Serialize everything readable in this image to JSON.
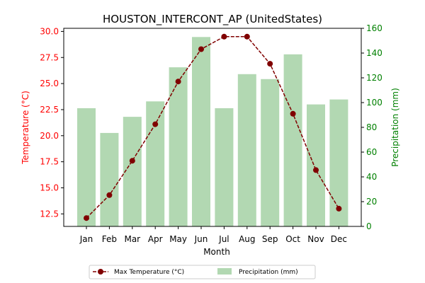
{
  "chart_data": {
    "type": "bar+line",
    "title": "HOUSTON_INTERCONT_AP (UnitedStates)",
    "xlabel": "Month",
    "ylabel_left": "Temperature (°C)",
    "ylabel_right": "Precipitation (mm)",
    "categories": [
      "Jan",
      "Feb",
      "Mar",
      "Apr",
      "May",
      "Jun",
      "Jul",
      "Aug",
      "Sep",
      "Oct",
      "Nov",
      "Dec"
    ],
    "ylim_left": [
      11.3,
      30.3
    ],
    "yticks_left": [
      "12.5",
      "15.0",
      "17.5",
      "20.0",
      "22.5",
      "25.0",
      "27.5",
      "30.0"
    ],
    "ylim_right": [
      0,
      160
    ],
    "yticks_right": [
      "0",
      "20",
      "40",
      "60",
      "80",
      "100",
      "120",
      "140",
      "160"
    ],
    "series": [
      {
        "name": "Max Temperature (°C)",
        "kind": "line",
        "axis": "left",
        "color": "#800000",
        "values": [
          12.1,
          14.3,
          17.6,
          21.1,
          25.2,
          28.3,
          29.5,
          29.5,
          26.9,
          22.1,
          16.7,
          13.0
        ]
      },
      {
        "name": "Precipitation (mm)",
        "kind": "bar",
        "axis": "right",
        "color": "#b2d8b2",
        "values": [
          95.5,
          75.5,
          88.5,
          101.0,
          128.5,
          153.0,
          95.5,
          123.0,
          119.0,
          139.0,
          98.5,
          102.5
        ]
      }
    ],
    "legend": {
      "position": "bottom-center",
      "entries": [
        "Max Temperature (°C)",
        "Precipitation (mm)"
      ]
    }
  }
}
